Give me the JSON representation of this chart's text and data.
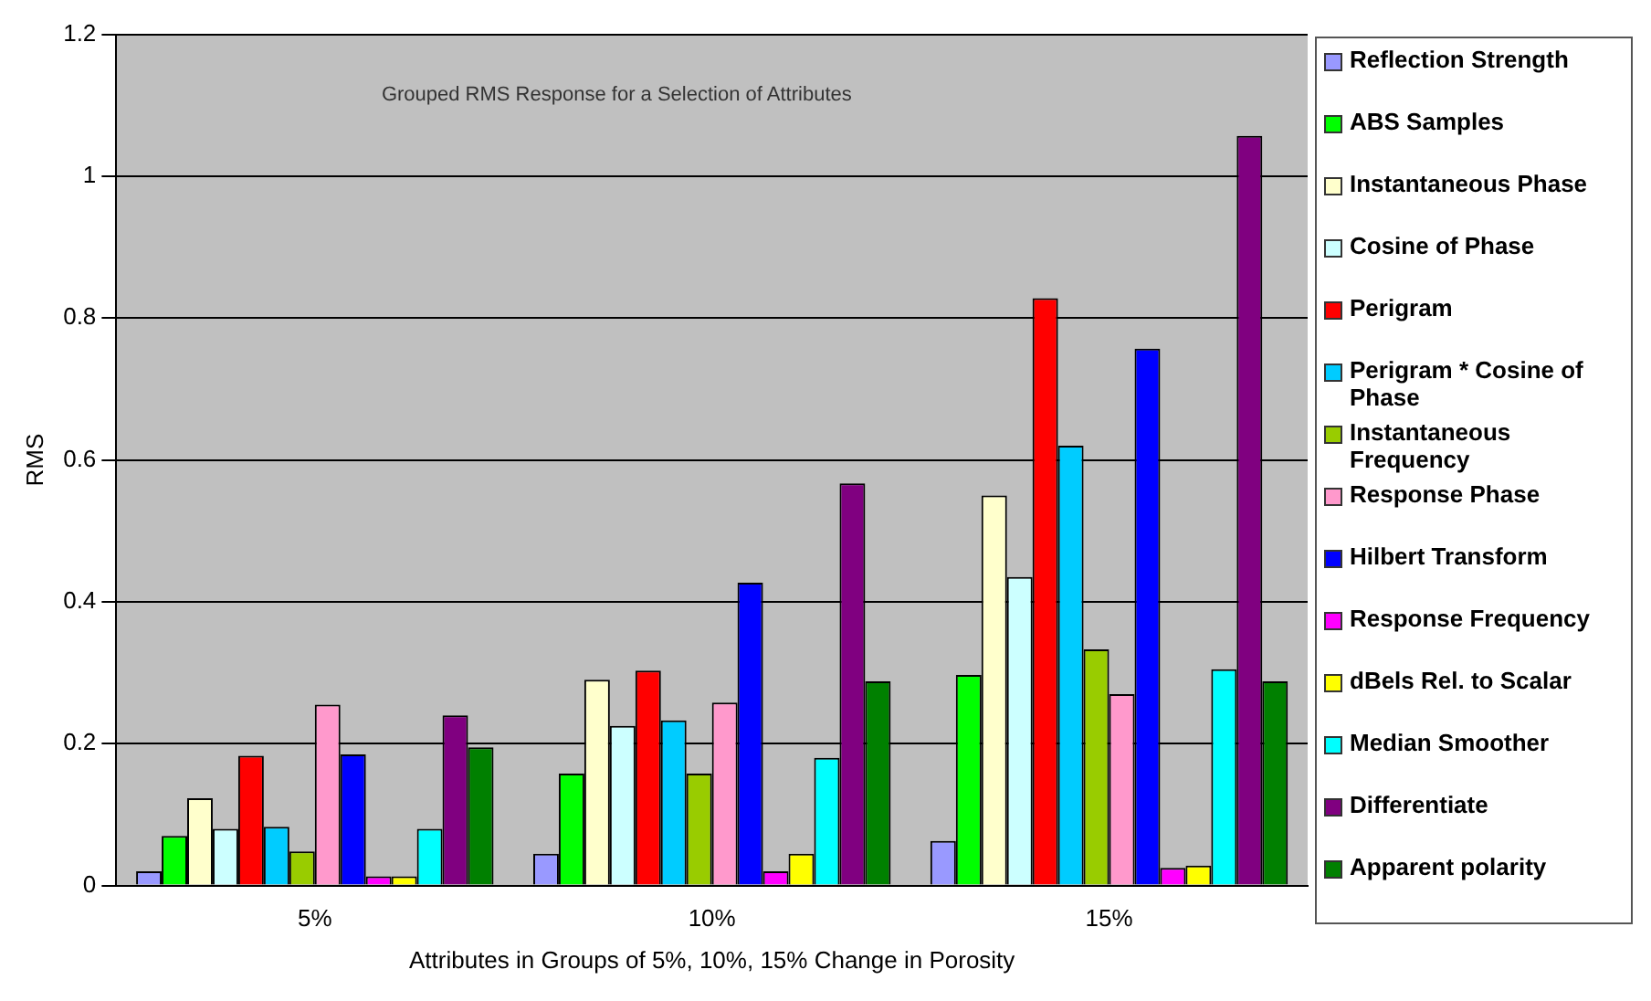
{
  "chart_data": {
    "type": "bar",
    "annotations": [
      "Grouped RMS Response for a Selection of Attributes"
    ],
    "xlabel": "Attributes in Groups of 5%, 10%, 15% Change in Porosity",
    "ylabel": "RMS",
    "categories": [
      "5%",
      "10%",
      "15%"
    ],
    "series": [
      {
        "name": "Reflection Strength",
        "color": "#9999ff",
        "values": [
          0.02,
          0.045,
          0.063
        ]
      },
      {
        "name": "ABS Samples",
        "color": "#00ff00",
        "values": [
          0.07,
          0.158,
          0.297
        ]
      },
      {
        "name": "Instantaneous Phase",
        "color": "#ffffcc",
        "values": [
          0.123,
          0.29,
          0.55
        ]
      },
      {
        "name": "Cosine of  Phase",
        "color": "#ccffff",
        "values": [
          0.08,
          0.225,
          0.435
        ]
      },
      {
        "name": "Perigram",
        "color": "#ff0000",
        "values": [
          0.183,
          0.303,
          0.828
        ]
      },
      {
        "name": "Perigram * Cosine of Phase",
        "color": "#00ccff",
        "values": [
          0.083,
          0.233,
          0.62
        ]
      },
      {
        "name": "Instantaneous Frequency",
        "color": "#99cc00",
        "values": [
          0.048,
          0.158,
          0.333
        ]
      },
      {
        "name": "Response Phase",
        "color": "#ff99cc",
        "values": [
          0.255,
          0.258,
          0.27
        ]
      },
      {
        "name": "Hilbert Transform",
        "color": "#0000ff",
        "values": [
          0.185,
          0.427,
          0.757
        ]
      },
      {
        "name": "Response Frequency",
        "color": "#ff00ff",
        "values": [
          0.013,
          0.02,
          0.025
        ]
      },
      {
        "name": "dBels Rel. to Scalar",
        "color": "#ffff00",
        "values": [
          0.013,
          0.045,
          0.028
        ]
      },
      {
        "name": "Median Smoother",
        "color": "#00ffff",
        "values": [
          0.08,
          0.18,
          0.305
        ]
      },
      {
        "name": "Differentiate",
        "color": "#800080",
        "values": [
          0.24,
          0.567,
          1.057
        ]
      },
      {
        "name": "Apparent polarity",
        "color": "#008000",
        "values": [
          0.195,
          0.288,
          0.288
        ]
      }
    ],
    "ylim": [
      0,
      1.2
    ],
    "yticks": [
      0,
      0.2,
      0.4,
      0.6,
      0.8,
      1,
      1.2
    ],
    "grid": "y",
    "legend": "right"
  }
}
